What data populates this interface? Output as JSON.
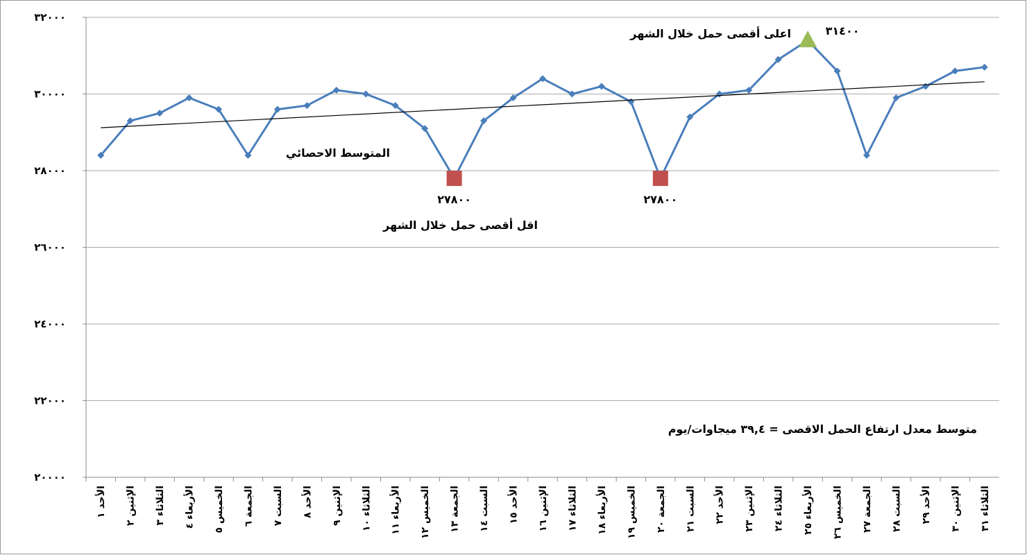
{
  "chart_data": {
    "type": "line",
    "categories": [
      "الأحد ١",
      "الإثنين ٢",
      "الثلاثاء ٣",
      "الأربعاء ٤",
      "الخميس ٥",
      "الجمعة ٦",
      "السبت ٧",
      "الأحد ٨",
      "الإثنين ٩",
      "الثلاثاء ١٠",
      "الأربعاء ١١",
      "الخميس ١٢",
      "الجمعة ١٣",
      "السبت ١٤",
      "الأحد ١٥",
      "الإثنين ١٦",
      "الثلاثاء ١٧",
      "الأربعاء ١٨",
      "الخميس ١٩",
      "الجمعة ٢٠",
      "السبت ٢١",
      "الأحد ٢٢",
      "الإثنين ٢٣",
      "الثلاثاء ٢٤",
      "الأربعاء ٢٥",
      "الخميس ٢٦",
      "الجمعة ٢٧",
      "السبت ٢٨",
      "الأحد ٢٩",
      "الإثنين ٣٠",
      "الثلاثاء ٣١"
    ],
    "series": [
      {
        "color": "#4a7ebb",
        "values": [
          28400,
          29300,
          29500,
          29900,
          29600,
          28400,
          29600,
          29700,
          30100,
          30000,
          29700,
          29100,
          27800,
          29300,
          29900,
          30400,
          30000,
          30200,
          29800,
          27800,
          29400,
          30000,
          30100,
          30900,
          31400,
          30600,
          28400,
          29900,
          30200,
          30600,
          30700
        ],
        "value_labels": [
          null,
          null,
          null,
          null,
          null,
          null,
          null,
          null,
          null,
          null,
          null,
          null,
          "٢٧٨٠٠",
          null,
          null,
          null,
          null,
          null,
          null,
          "٢٧٨٠٠",
          null,
          null,
          null,
          null,
          "٣١٤٠٠",
          null,
          null,
          null,
          null,
          null,
          null
        ]
      }
    ],
    "min_color": "#c0504d",
    "max_color": "#9bbb59",
    "trend": {
      "values": [
        29120,
        30320
      ],
      "color": "#000000"
    },
    "ylim": [
      20000,
      32000
    ],
    "yticks": [
      {
        "value": 20000,
        "label": "٢٠٠٠٠"
      },
      {
        "value": 22000,
        "label": "٢٢٠٠٠"
      },
      {
        "value": 24000,
        "label": "٢٤٠٠٠"
      },
      {
        "value": 26000,
        "label": "٢٦٠٠٠"
      },
      {
        "value": 28000,
        "label": "٢٨٠٠٠"
      },
      {
        "value": 30000,
        "label": "٣٠٠٠٠"
      },
      {
        "value": 32000,
        "label": "٣٢٠٠٠"
      }
    ],
    "grid": true,
    "annotations": {
      "trend_label": "المتوسط الاحصائي",
      "min_label": "اقل أقصى حمل خلال الشهر",
      "max_label": "اعلى  أقصى حمل خلال الشهر",
      "rate_note": "متوسط معدل ارتفاع الحمل الاقصى = ٣٩,٤ ميجاوات/يوم"
    }
  }
}
